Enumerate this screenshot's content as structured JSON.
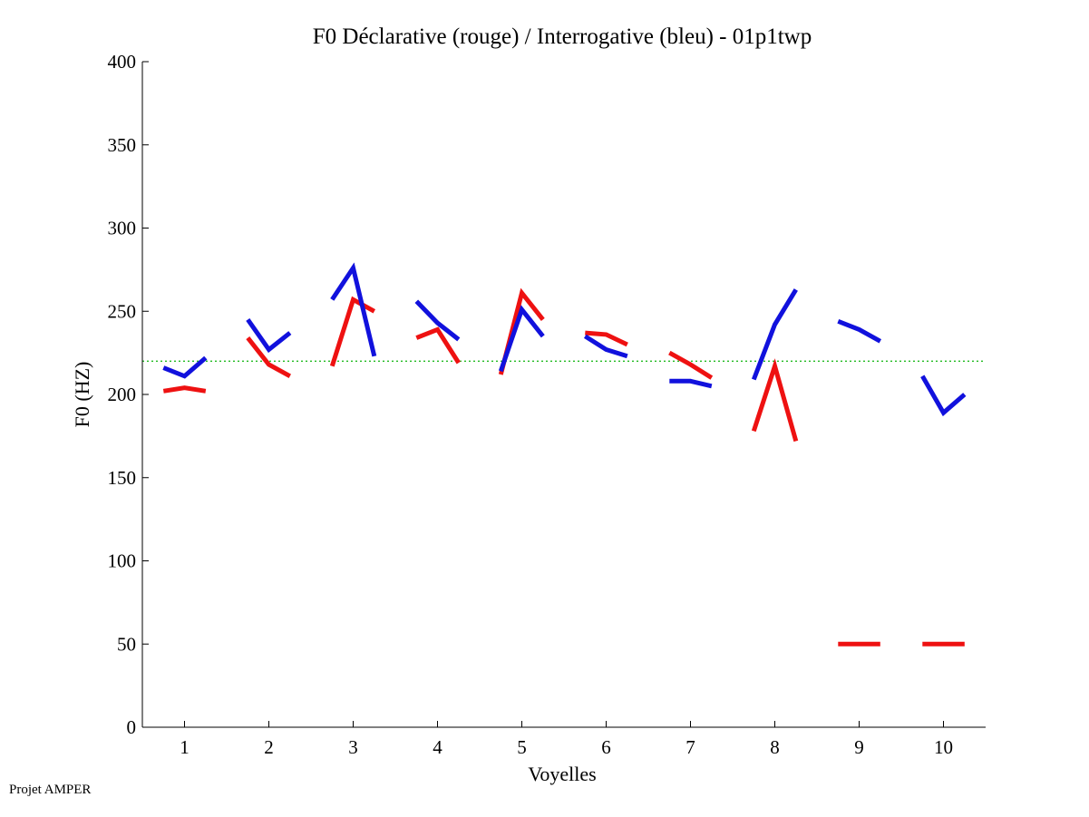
{
  "chart_data": {
    "type": "line",
    "title": "F0 Déclarative (rouge) / Interrogative (bleu) - 01p1twp",
    "xlabel": "Voyelles",
    "ylabel": "F0 (HZ)",
    "xlim": [
      0.5,
      10.5
    ],
    "ylim": [
      0,
      400
    ],
    "xticks": [
      "1",
      "2",
      "3",
      "4",
      "5",
      "6",
      "7",
      "8",
      "9",
      "10"
    ],
    "yticks": [
      "0",
      "50",
      "100",
      "150",
      "200",
      "250",
      "300",
      "350",
      "400"
    ],
    "reference_line": {
      "y": 220,
      "color": "#22bb22"
    },
    "series": [
      {
        "name": "Déclarative (rouge)",
        "color": "#ee1111",
        "segments": [
          [
            [
              0.75,
              202
            ],
            [
              1.0,
              204
            ],
            [
              1.25,
              202
            ]
          ],
          [
            [
              1.75,
              234
            ],
            [
              2.0,
              218
            ],
            [
              2.25,
              211
            ]
          ],
          [
            [
              2.75,
              217
            ],
            [
              3.0,
              257
            ],
            [
              3.25,
              250
            ]
          ],
          [
            [
              3.75,
              234
            ],
            [
              4.0,
              239
            ],
            [
              4.25,
              219
            ]
          ],
          [
            [
              4.75,
              212
            ],
            [
              5.0,
              261
            ],
            [
              5.25,
              245
            ]
          ],
          [
            [
              5.75,
              237
            ],
            [
              6.0,
              236
            ],
            [
              6.25,
              230
            ]
          ],
          [
            [
              6.75,
              225
            ],
            [
              7.0,
              218
            ],
            [
              7.25,
              210
            ]
          ],
          [
            [
              7.75,
              178
            ],
            [
              8.0,
              217
            ],
            [
              8.25,
              172
            ]
          ],
          [
            [
              8.75,
              50
            ],
            [
              9.25,
              50
            ]
          ],
          [
            [
              9.75,
              50
            ],
            [
              10.25,
              50
            ]
          ]
        ]
      },
      {
        "name": "Interrogative (bleu)",
        "color": "#1111dd",
        "segments": [
          [
            [
              0.75,
              216
            ],
            [
              1.0,
              211
            ],
            [
              1.25,
              222
            ]
          ],
          [
            [
              1.75,
              245
            ],
            [
              2.0,
              227
            ],
            [
              2.25,
              237
            ]
          ],
          [
            [
              2.75,
              257
            ],
            [
              3.0,
              276
            ],
            [
              3.25,
              223
            ]
          ],
          [
            [
              3.75,
              256
            ],
            [
              4.0,
              243
            ],
            [
              4.25,
              233
            ]
          ],
          [
            [
              4.75,
              214
            ],
            [
              5.0,
              251
            ],
            [
              5.25,
              235
            ]
          ],
          [
            [
              5.75,
              235
            ],
            [
              6.0,
              227
            ],
            [
              6.25,
              223
            ]
          ],
          [
            [
              6.75,
              208
            ],
            [
              7.0,
              208
            ],
            [
              7.25,
              205
            ]
          ],
          [
            [
              7.75,
              209
            ],
            [
              8.0,
              242
            ],
            [
              8.25,
              263
            ]
          ],
          [
            [
              8.75,
              244
            ],
            [
              9.0,
              239
            ],
            [
              9.25,
              232
            ]
          ],
          [
            [
              9.75,
              211
            ],
            [
              10.0,
              189
            ],
            [
              10.25,
              200
            ]
          ]
        ]
      }
    ]
  },
  "footer": "Projet AMPER"
}
